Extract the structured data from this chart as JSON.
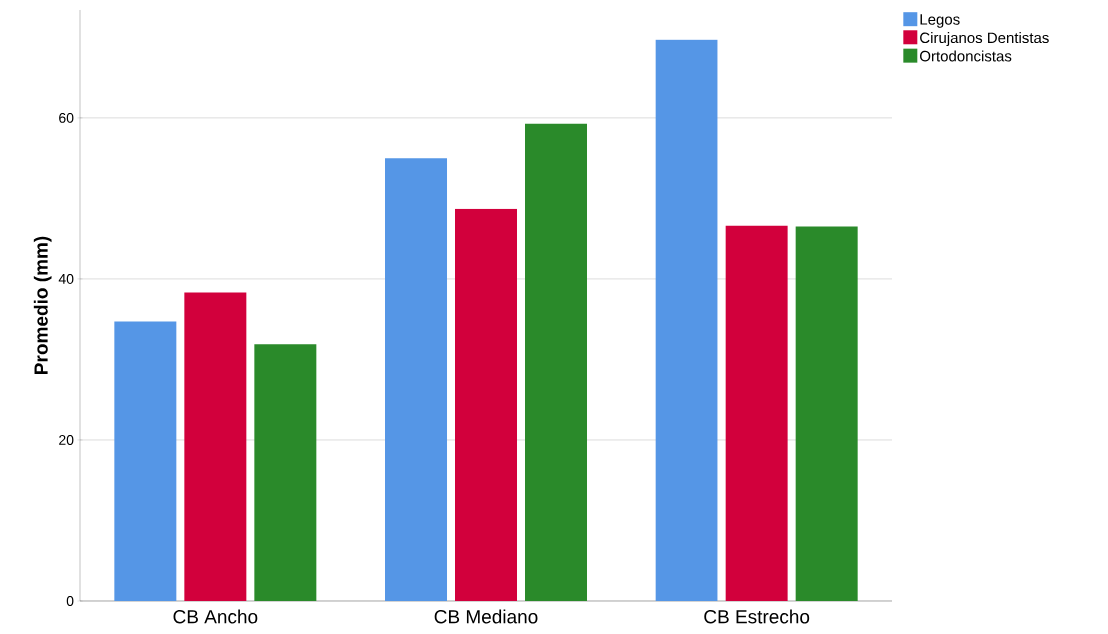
{
  "chart_data": {
    "type": "bar",
    "ylabel": "Promedio (mm)",
    "categories": [
      "CB Ancho",
      "CB Mediano",
      "CB Estrecho"
    ],
    "series": [
      {
        "name": "Legos",
        "color": "#5596e6",
        "values": [
          34.7,
          55.0,
          69.7
        ]
      },
      {
        "name": "Cirujanos Dentistas",
        "color": "#d2003c",
        "values": [
          38.3,
          48.7,
          46.6
        ]
      },
      {
        "name": "Ortodoncistas",
        "color": "#2a8a2a",
        "values": [
          31.9,
          59.3,
          46.5
        ]
      }
    ],
    "ylim": [
      0,
      73.4
    ],
    "yticks": [
      0,
      20,
      40,
      60
    ],
    "grid": "y",
    "legend": "top right"
  }
}
